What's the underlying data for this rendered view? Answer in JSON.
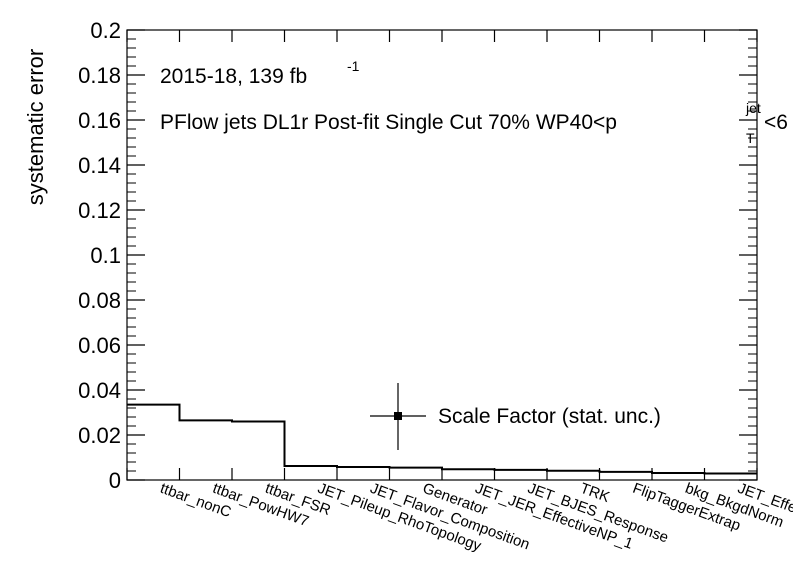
{
  "chart_data": {
    "type": "step",
    "ylabel": "systematic error",
    "ylim": [
      0,
      0.2
    ],
    "yticks": [
      "0",
      "0.02",
      "0.04",
      "0.06",
      "0.08",
      "0.1",
      "0.12",
      "0.14",
      "0.16",
      "0.18",
      "0.2"
    ],
    "categories": [
      "ttbar_nonC",
      "ttbar_PowHW7",
      "ttbar_FSR",
      "JET_Pileup_RhoTopology",
      "JET_Flavor_Composition",
      "Generator",
      "JET_JER_EffectiveNP_1",
      "JET_BJES_Response",
      "TRK",
      "FlipTaggerExtrap",
      "bkg_BkgdNorm",
      "JET_Effe"
    ],
    "values": [
      0.0335,
      0.0265,
      0.026,
      0.0062,
      0.0058,
      0.0055,
      0.0048,
      0.0045,
      0.0041,
      0.0036,
      0.0031,
      0.0029
    ],
    "annotations": {
      "lumi_main": "2015-18, 139 fb",
      "lumi_sup": "-1",
      "selection_main": "PFlow jets DL1r Post-fit Single Cut 70% WP40<p",
      "selection_sup": "jet",
      "selection_sub": "T",
      "selection_tail": "<6"
    },
    "legend": {
      "label": "Scale Factor (stat. unc.)",
      "position": "center-right"
    },
    "colors": {
      "line": "#000000",
      "background": "#ffffff"
    }
  }
}
